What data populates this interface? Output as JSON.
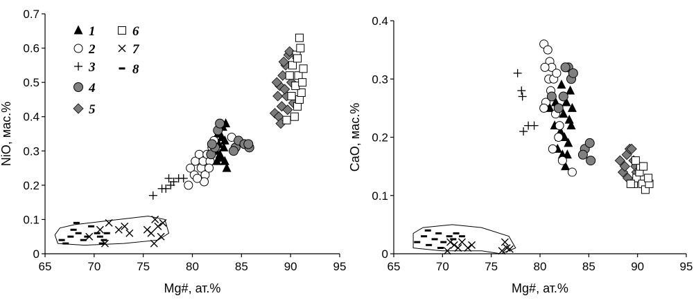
{
  "legend": [
    {
      "label": "1",
      "marker": "filled-triangle"
    },
    {
      "label": "2",
      "marker": "open-circle"
    },
    {
      "label": "3",
      "marker": "plus"
    },
    {
      "label": "4",
      "marker": "filled-circle"
    },
    {
      "label": "5",
      "marker": "diamond"
    },
    {
      "label": "6",
      "marker": "open-square"
    },
    {
      "label": "7",
      "marker": "cross"
    },
    {
      "label": "8",
      "marker": "dash"
    }
  ],
  "colors": {
    "black": "#000000",
    "gray_fill": "#808080",
    "diamond_fill": "#7a7a7a",
    "open_fill": "#ffffff",
    "axis": "#000000"
  },
  "chart_data": [
    {
      "type": "scatter",
      "title": "",
      "xlabel": "Mg#, ат.%",
      "ylabel": "NiO, мас.%",
      "xlim": [
        65,
        95
      ],
      "ylim": [
        0,
        0.7
      ],
      "xticks": [
        "65",
        "70",
        "75",
        "80",
        "85",
        "90",
        "95"
      ],
      "yticks": [
        "0",
        "0.1",
        "0.2",
        "0.3",
        "0.4",
        "0.5",
        "0.6",
        "0.7"
      ],
      "legend_position": "top-left",
      "field_outline": [
        [
          66.3,
          0.03
        ],
        [
          69,
          0.025
        ],
        [
          73,
          0.03
        ],
        [
          76.5,
          0.04
        ],
        [
          77.6,
          0.06
        ],
        [
          77.2,
          0.1
        ],
        [
          75.5,
          0.11
        ],
        [
          71,
          0.095
        ],
        [
          68,
          0.085
        ],
        [
          66.5,
          0.075
        ],
        [
          66,
          0.055
        ],
        [
          66.3,
          0.03
        ]
      ],
      "series": [
        {
          "name": "1",
          "marker": "filled-triangle",
          "points": [
            [
              82.4,
              0.3
            ],
            [
              82.7,
              0.32
            ],
            [
              83,
              0.34
            ],
            [
              83.2,
              0.31
            ],
            [
              82.9,
              0.28
            ],
            [
              83.3,
              0.27
            ],
            [
              82.6,
              0.35
            ],
            [
              83.1,
              0.37
            ],
            [
              83.4,
              0.38
            ],
            [
              82.8,
              0.29
            ],
            [
              83.5,
              0.25
            ],
            [
              82.5,
              0.27
            ],
            [
              83.3,
              0.33
            ]
          ]
        },
        {
          "name": "2",
          "marker": "open-circle",
          "points": [
            [
              79.6,
              0.2
            ],
            [
              79.8,
              0.25
            ],
            [
              80.2,
              0.23
            ],
            [
              80.3,
              0.27
            ],
            [
              80.7,
              0.29
            ],
            [
              80.9,
              0.25
            ],
            [
              81.1,
              0.27
            ],
            [
              81.3,
              0.23
            ],
            [
              81.5,
              0.29
            ],
            [
              81.8,
              0.27
            ],
            [
              82,
              0.31
            ],
            [
              81.7,
              0.25
            ],
            [
              82.2,
              0.33
            ],
            [
              84,
              0.34
            ],
            [
              81.2,
              0.21
            ],
            [
              80.5,
              0.22
            ]
          ]
        },
        {
          "name": "3",
          "marker": "plus",
          "points": [
            [
              76,
              0.17
            ],
            [
              76.9,
              0.19
            ],
            [
              77.3,
              0.19
            ],
            [
              77.8,
              0.2
            ],
            [
              78.1,
              0.21
            ],
            [
              78.6,
              0.22
            ],
            [
              79.1,
              0.22
            ],
            [
              77.6,
              0.22
            ]
          ]
        },
        {
          "name": "4",
          "marker": "filled-circle",
          "points": [
            [
              81.9,
              0.29
            ],
            [
              82.3,
              0.31
            ],
            [
              82.6,
              0.36
            ],
            [
              82.8,
              0.38
            ],
            [
              84.4,
              0.31
            ],
            [
              84.7,
              0.33
            ],
            [
              85.3,
              0.32
            ],
            [
              85.8,
              0.31
            ],
            [
              85.7,
              0.32
            ],
            [
              84.2,
              0.3
            ],
            [
              82,
              0.32
            ]
          ]
        },
        {
          "name": "5",
          "marker": "diamond",
          "points": [
            [
              88.4,
              0.41
            ],
            [
              88.7,
              0.46
            ],
            [
              88.9,
              0.49
            ],
            [
              89.2,
              0.52
            ],
            [
              89.5,
              0.55
            ],
            [
              89.8,
              0.58
            ],
            [
              89.1,
              0.43
            ],
            [
              89.6,
              0.46
            ],
            [
              90.1,
              0.5
            ],
            [
              89.3,
              0.56
            ],
            [
              88.8,
              0.4
            ],
            [
              89.7,
              0.42
            ],
            [
              89,
              0.38
            ],
            [
              89.9,
              0.59
            ],
            [
              90.3,
              0.44
            ],
            [
              88.6,
              0.5
            ],
            [
              89.4,
              0.48
            ]
          ]
        },
        {
          "name": "6",
          "marker": "open-square",
          "points": [
            [
              89.6,
              0.39
            ],
            [
              90.4,
              0.4
            ],
            [
              90.7,
              0.43
            ],
            [
              90.9,
              0.45
            ],
            [
              91.1,
              0.47
            ],
            [
              90.5,
              0.49
            ],
            [
              90.8,
              0.52
            ],
            [
              91.3,
              0.54
            ],
            [
              90.2,
              0.55
            ],
            [
              90.6,
              0.58
            ],
            [
              91,
              0.6
            ],
            [
              90.9,
              0.63
            ],
            [
              90.1,
              0.46
            ],
            [
              91.2,
              0.5
            ],
            [
              90.7,
              0.57
            ],
            [
              89.9,
              0.52
            ]
          ]
        },
        {
          "name": "7",
          "marker": "cross",
          "points": [
            [
              69.5,
              0.05
            ],
            [
              70.6,
              0.07
            ],
            [
              71.1,
              0.03
            ],
            [
              71.5,
              0.09
            ],
            [
              72.5,
              0.07
            ],
            [
              73.1,
              0.08
            ],
            [
              73.6,
              0.06
            ],
            [
              75.8,
              0.06
            ],
            [
              76.2,
              0.1
            ],
            [
              76.5,
              0.08
            ],
            [
              76.8,
              0.05
            ],
            [
              77,
              0.09
            ],
            [
              76.1,
              0.03
            ],
            [
              75.4,
              0.07
            ]
          ]
        },
        {
          "name": "8",
          "marker": "dash",
          "points": [
            [
              66.7,
              0.04
            ],
            [
              67.1,
              0.03
            ],
            [
              67.6,
              0.05
            ],
            [
              68.4,
              0.06
            ],
            [
              68.9,
              0.04
            ],
            [
              69.3,
              0.05
            ],
            [
              69.7,
              0.08
            ],
            [
              70.3,
              0.06
            ],
            [
              70.6,
              0.05
            ],
            [
              71,
              0.04
            ],
            [
              71.3,
              0.06
            ],
            [
              68.2,
              0.09
            ],
            [
              67.9,
              0.07
            ],
            [
              70.8,
              0.03
            ]
          ]
        }
      ]
    },
    {
      "type": "scatter",
      "title": "",
      "xlabel": "Mg#, ат.%",
      "ylabel": "CaO, мас.%",
      "xlim": [
        65,
        95
      ],
      "ylim": [
        0,
        0.4
      ],
      "xticks": [
        "65",
        "70",
        "75",
        "80",
        "85",
        "90",
        "95"
      ],
      "yticks": [
        "0",
        "0.1",
        "0.2",
        "0.3",
        "0.4"
      ],
      "field_outline": [
        [
          67,
          0.01
        ],
        [
          70,
          0.005
        ],
        [
          74,
          0.005
        ],
        [
          76,
          0
        ],
        [
          77.5,
          0.01
        ],
        [
          76.8,
          0.03
        ],
        [
          74,
          0.045
        ],
        [
          71,
          0.05
        ],
        [
          68,
          0.045
        ],
        [
          67,
          0.035
        ],
        [
          67,
          0.01
        ]
      ],
      "series": [
        {
          "name": "1",
          "marker": "filled-triangle",
          "points": [
            [
              81,
              0.25
            ],
            [
              81.5,
              0.22
            ],
            [
              82,
              0.2
            ],
            [
              82.3,
              0.17
            ],
            [
              82.6,
              0.15
            ],
            [
              82.9,
              0.19
            ],
            [
              83.2,
              0.22
            ],
            [
              82.7,
              0.26
            ],
            [
              83.1,
              0.28
            ],
            [
              82.4,
              0.24
            ],
            [
              81.8,
              0.18
            ],
            [
              82.5,
              0.2
            ],
            [
              83,
              0.23
            ],
            [
              82.1,
              0.21
            ],
            [
              82.8,
              0.17
            ],
            [
              83.3,
              0.25
            ],
            [
              81.6,
              0.26
            ],
            [
              82.2,
              0.29
            ]
          ]
        },
        {
          "name": "2",
          "marker": "open-circle",
          "points": [
            [
              80.4,
              0.36
            ],
            [
              80.8,
              0.35
            ],
            [
              81,
              0.33
            ],
            [
              81.2,
              0.32
            ],
            [
              80.5,
              0.32
            ],
            [
              80.9,
              0.3
            ],
            [
              81.4,
              0.3
            ],
            [
              80.6,
              0.26
            ],
            [
              81.1,
              0.28
            ],
            [
              81.6,
              0.24
            ],
            [
              82,
              0.22
            ],
            [
              81.3,
              0.18
            ],
            [
              81.9,
              0.2
            ],
            [
              82.3,
              0.16
            ],
            [
              83.3,
              0.14
            ],
            [
              80.4,
              0.25
            ],
            [
              81.7,
              0.31
            ]
          ]
        },
        {
          "name": "3",
          "marker": "plus",
          "points": [
            [
              77.7,
              0.31
            ],
            [
              78.1,
              0.28
            ],
            [
              78.2,
              0.27
            ],
            [
              78.3,
              0.21
            ],
            [
              78.8,
              0.22
            ],
            [
              79.4,
              0.22
            ]
          ]
        },
        {
          "name": "4",
          "marker": "filled-circle",
          "points": [
            [
              81.2,
              0.27
            ],
            [
              81.9,
              0.25
            ],
            [
              82.4,
              0.27
            ],
            [
              82.9,
              0.32
            ],
            [
              83.2,
              0.3
            ],
            [
              84.6,
              0.18
            ],
            [
              85.1,
              0.19
            ],
            [
              85.2,
              0.16
            ],
            [
              84.4,
              0.17
            ],
            [
              82.6,
              0.32
            ],
            [
              83.4,
              0.31
            ]
          ]
        },
        {
          "name": "5",
          "marker": "diamond",
          "points": [
            [
              88.2,
              0.16
            ],
            [
              88.5,
              0.14
            ],
            [
              88.9,
              0.17
            ],
            [
              89.2,
              0.18
            ],
            [
              89.6,
              0.16
            ],
            [
              89.9,
              0.14
            ],
            [
              89.4,
              0.18
            ],
            [
              89,
              0.13
            ],
            [
              89.8,
              0.15
            ],
            [
              88.7,
              0.15
            ]
          ]
        },
        {
          "name": "6",
          "marker": "open-square",
          "points": [
            [
              89.6,
              0.12
            ],
            [
              89.9,
              0.13
            ],
            [
              90.2,
              0.14
            ],
            [
              90.5,
              0.12
            ],
            [
              90.8,
              0.11
            ],
            [
              91.2,
              0.12
            ],
            [
              89.3,
              0.12
            ],
            [
              91.1,
              0.13
            ],
            [
              90.3,
              0.15
            ],
            [
              89.8,
              0.16
            ],
            [
              90.6,
              0.15
            ]
          ]
        },
        {
          "name": "7",
          "marker": "cross",
          "points": [
            [
              70.8,
              0.02
            ],
            [
              71.2,
              0.015
            ],
            [
              71.6,
              0.01
            ],
            [
              72,
              0.02
            ],
            [
              72.6,
              0.01
            ],
            [
              73,
              0.015
            ],
            [
              76.1,
              0.005
            ],
            [
              76.4,
              0.02
            ],
            [
              76.6,
              0.01
            ],
            [
              76.9,
              0.008
            ],
            [
              70.5,
              0.005
            ]
          ]
        },
        {
          "name": "8",
          "marker": "dash",
          "points": [
            [
              67.4,
              0.02
            ],
            [
              68.1,
              0.03
            ],
            [
              68.6,
              0.015
            ],
            [
              69.2,
              0.025
            ],
            [
              69.6,
              0.035
            ],
            [
              70.1,
              0.02
            ],
            [
              70.7,
              0.03
            ],
            [
              71.1,
              0.025
            ],
            [
              71.4,
              0.035
            ],
            [
              72,
              0.03
            ],
            [
              68.5,
              0.04
            ],
            [
              69.8,
              0.01
            ]
          ]
        }
      ]
    }
  ]
}
